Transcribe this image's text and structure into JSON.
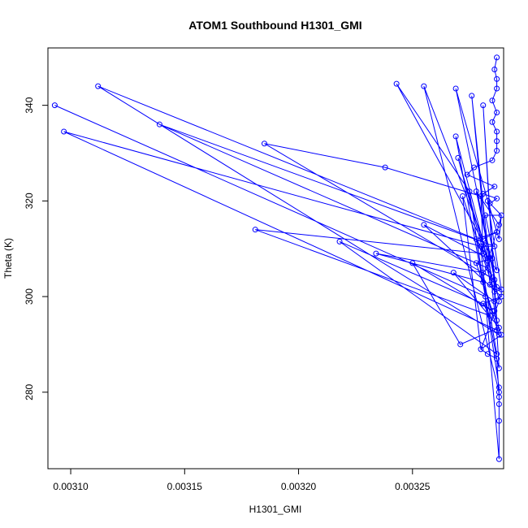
{
  "chart_data": {
    "type": "scatter",
    "mode": "points+lines",
    "title": "ATOM1 Southbound H1301_GMI",
    "xlabel": "H1301_GMI",
    "ylabel": "Theta (K)",
    "xlim": [
      0.00309,
      0.00329
    ],
    "ylim": [
      264,
      352
    ],
    "x_ticks": [
      0.0031,
      0.00315,
      0.0032,
      0.00325
    ],
    "x_tick_labels": [
      "0.00310",
      "0.00315",
      "0.00320",
      "0.00325"
    ],
    "y_ticks": [
      280,
      300,
      320,
      340
    ],
    "y_tick_labels": [
      "280",
      "300",
      "320",
      "340"
    ],
    "grid": false,
    "series_color": "#0000ff",
    "points": [
      [
        0.003288,
        266.0
      ],
      [
        0.003288,
        274.0
      ],
      [
        0.003288,
        280.0
      ],
      [
        0.003288,
        277.5
      ],
      [
        0.003288,
        279.0
      ],
      [
        0.003287,
        287.0
      ],
      [
        0.003283,
        288.0
      ],
      [
        0.00328,
        289.0
      ],
      [
        0.003289,
        292.0
      ],
      [
        0.003288,
        293.5
      ],
      [
        0.003287,
        295.0
      ],
      [
        0.003285,
        297.0
      ],
      [
        0.003281,
        298.5
      ],
      [
        0.003289,
        300.0
      ],
      [
        0.003289,
        301.5
      ],
      [
        0.003284,
        302.5
      ],
      [
        0.003286,
        303.5
      ],
      [
        0.003281,
        305.0
      ],
      [
        0.003283,
        306.0
      ],
      [
        0.003278,
        307.0
      ],
      [
        0.003285,
        308.0
      ],
      [
        0.003281,
        309.0
      ],
      [
        0.00328,
        310.5
      ],
      [
        0.003278,
        312.0
      ],
      [
        0.003287,
        313.5
      ],
      [
        0.003288,
        315.0
      ],
      [
        0.003289,
        317.0
      ],
      [
        0.003284,
        319.5
      ],
      [
        0.003287,
        320.5
      ],
      [
        0.003281,
        321.5
      ],
      [
        0.003286,
        323.0
      ],
      [
        0.003274,
        325.5
      ],
      [
        0.003277,
        327.0
      ],
      [
        0.003285,
        328.5
      ],
      [
        0.003287,
        330.5
      ],
      [
        0.003287,
        332.5
      ],
      [
        0.003287,
        334.5
      ],
      [
        0.003285,
        336.5
      ],
      [
        0.003287,
        338.5
      ],
      [
        0.003285,
        341.0
      ],
      [
        0.003287,
        343.5
      ],
      [
        0.003287,
        345.5
      ],
      [
        0.003286,
        347.5
      ],
      [
        0.003287,
        350.0
      ],
      [
        0.003093,
        340.0
      ],
      [
        0.003282,
        300.0
      ],
      [
        0.003112,
        344.0
      ],
      [
        0.003288,
        292.0
      ],
      [
        0.003139,
        336.0
      ],
      [
        0.003286,
        310.5
      ],
      [
        0.003097,
        334.5
      ],
      [
        0.003287,
        293.0
      ],
      [
        0.003185,
        332.0
      ],
      [
        0.003238,
        327.0
      ],
      [
        0.00328,
        321.0
      ],
      [
        0.003181,
        314.0
      ],
      [
        0.003284,
        296.0
      ],
      [
        0.003218,
        311.5
      ],
      [
        0.003287,
        288.0
      ],
      [
        0.003234,
        309.0
      ],
      [
        0.003281,
        303.0
      ],
      [
        0.00325,
        307.0
      ],
      [
        0.003271,
        290.0
      ],
      [
        0.003268,
        305.0
      ],
      [
        0.003286,
        299.0
      ],
      [
        0.003255,
        315.0
      ],
      [
        0.003283,
        308.0
      ],
      [
        0.003243,
        344.5
      ],
      [
        0.003275,
        322.0
      ],
      [
        0.003288,
        281.0
      ],
      [
        0.003255,
        344.0
      ],
      [
        0.003281,
        312.0
      ],
      [
        0.003269,
        343.5
      ],
      [
        0.003287,
        302.0
      ],
      [
        0.003276,
        342.0
      ],
      [
        0.003286,
        297.0
      ],
      [
        0.003281,
        340.0
      ],
      [
        0.003288,
        285.0
      ],
      [
        0.003269,
        333.5
      ],
      [
        0.003285,
        304.0
      ],
      [
        0.00327,
        329.0
      ],
      [
        0.003283,
        307.5
      ],
      [
        0.003278,
        322.0
      ],
      [
        0.003288,
        299.0
      ],
      [
        0.003272,
        321.0
      ],
      [
        0.003286,
        301.0
      ],
      [
        0.003283,
        320.0
      ],
      [
        0.003288,
        312.0
      ],
      [
        0.003282,
        317.0
      ],
      [
        0.003287,
        305.5
      ]
    ],
    "path_order": [
      44,
      45,
      23,
      46,
      47,
      19,
      48,
      49,
      22,
      50,
      51,
      16,
      52,
      53,
      54,
      21,
      55,
      56,
      12,
      57,
      58,
      17,
      59,
      60,
      11,
      61,
      62,
      9,
      63,
      64,
      13,
      65,
      66,
      20,
      67,
      68,
      69,
      2,
      70,
      71,
      24,
      72,
      73,
      15,
      74,
      75,
      10,
      76,
      77,
      5,
      78,
      79,
      18,
      80,
      81,
      25,
      82,
      83,
      7,
      84,
      85,
      14,
      86,
      87,
      26,
      88,
      89,
      22,
      0,
      1,
      2,
      3,
      4,
      5,
      6,
      7,
      8,
      9,
      10,
      11,
      12,
      13,
      14,
      15,
      16,
      17,
      18,
      19,
      20,
      21,
      22,
      23,
      24,
      25,
      26,
      27,
      28,
      29,
      30,
      31,
      32,
      33,
      34,
      35,
      36,
      37,
      38,
      39,
      40,
      41,
      42,
      43
    ]
  }
}
